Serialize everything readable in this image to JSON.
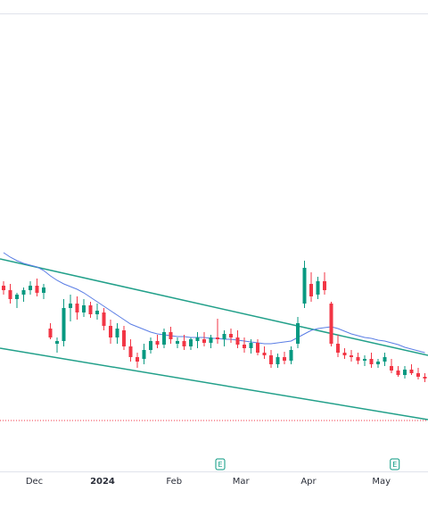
{
  "chart_data": {
    "type": "candlestick",
    "open": [
      208,
      203,
      193,
      198,
      203,
      208,
      200,
      160,
      143,
      146,
      183,
      188,
      178,
      186,
      176,
      178,
      163,
      150,
      158,
      140,
      128,
      126,
      136,
      146,
      142,
      156,
      143,
      146,
      140,
      146,
      148,
      144,
      150,
      148,
      154,
      150,
      142,
      138,
      144,
      133,
      130,
      120,
      128,
      124,
      143,
      188,
      210,
      198,
      213,
      188,
      143,
      133,
      130,
      128,
      124,
      126,
      120,
      123,
      118,
      113,
      108,
      114,
      110,
      106
    ],
    "high": [
      213,
      210,
      200,
      206,
      213,
      216,
      210,
      166,
      150,
      193,
      198,
      196,
      193,
      190,
      188,
      183,
      170,
      166,
      163,
      148,
      133,
      143,
      150,
      153,
      160,
      162,
      150,
      153,
      150,
      156,
      156,
      153,
      171,
      158,
      160,
      158,
      150,
      148,
      148,
      140,
      136,
      132,
      134,
      140,
      173,
      236,
      223,
      218,
      223,
      190,
      153,
      138,
      136,
      133,
      130,
      133,
      126,
      133,
      126,
      118,
      118,
      120,
      116,
      110
    ],
    "low": [
      198,
      188,
      183,
      190,
      198,
      196,
      193,
      148,
      133,
      140,
      168,
      170,
      173,
      172,
      170,
      158,
      143,
      143,
      136,
      123,
      116,
      120,
      132,
      138,
      138,
      143,
      138,
      136,
      136,
      138,
      140,
      138,
      143,
      140,
      144,
      138,
      133,
      132,
      130,
      126,
      116,
      116,
      120,
      120,
      138,
      183,
      190,
      193,
      198,
      140,
      128,
      126,
      123,
      120,
      118,
      116,
      116,
      118,
      110,
      106,
      104,
      108,
      103,
      100
    ],
    "close": [
      203,
      193,
      198,
      203,
      208,
      200,
      206,
      150,
      146,
      183,
      188,
      178,
      186,
      176,
      180,
      163,
      150,
      160,
      140,
      128,
      123,
      136,
      146,
      142,
      156,
      148,
      146,
      140,
      148,
      150,
      144,
      150,
      148,
      154,
      150,
      142,
      138,
      144,
      133,
      130,
      120,
      128,
      124,
      136,
      166,
      228,
      196,
      213,
      203,
      143,
      133,
      130,
      128,
      124,
      126,
      120,
      123,
      128,
      113,
      108,
      114,
      110,
      106,
      104
    ],
    "up_color": "#089981",
    "down_color": "#f23645",
    "ma": {
      "color": "#5b7ee5",
      "values": [
        245,
        240,
        236,
        233,
        231,
        229,
        225,
        219,
        214,
        210,
        207,
        204,
        200,
        195,
        190,
        185,
        180,
        175,
        170,
        165,
        162,
        159,
        156,
        154,
        153,
        152,
        151,
        151,
        150,
        150,
        150,
        149,
        149,
        148,
        148,
        147,
        146,
        145,
        144,
        143,
        143,
        144,
        145,
        146,
        150,
        154,
        158,
        160,
        161,
        162,
        160,
        157,
        154,
        152,
        150,
        149,
        147,
        146,
        144,
        142,
        139,
        137,
        135,
        133
      ]
    },
    "trendlines": [
      {
        "color": "#22a08a",
        "points": [
          [
            -0.5333,
            238
          ],
          [
            63.4667,
            130
          ]
        ]
      },
      {
        "color": "#22a08a",
        "points": [
          [
            -0.5333,
            138
          ],
          [
            63.4667,
            58
          ]
        ]
      }
    ],
    "hline": {
      "value": 57,
      "color": "#f23645"
    },
    "ylim": [
      0,
      513
    ],
    "xlim": [
      -0.5333,
      63.4667
    ],
    "xticks": [
      {
        "value": 4.6,
        "label": "Dec"
      },
      {
        "value": 14.8,
        "label": "2024"
      },
      {
        "value": 25.5,
        "label": "Feb"
      },
      {
        "value": 35.5,
        "label": "Mar"
      },
      {
        "value": 45.6,
        "label": "Apr"
      },
      {
        "value": 56.5,
        "label": "May"
      }
    ],
    "events": [
      {
        "x": 32.4,
        "label": "E"
      },
      {
        "x": 58.5,
        "label": "E"
      }
    ]
  }
}
